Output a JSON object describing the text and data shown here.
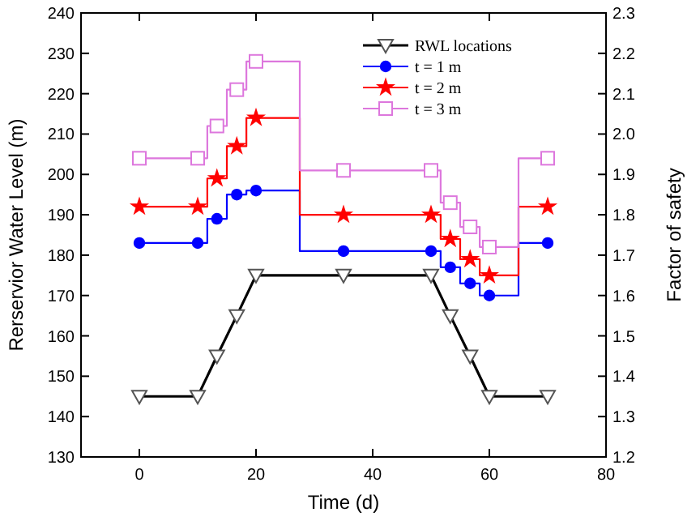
{
  "chart_data": {
    "type": "step",
    "xlabel": "Time (d)",
    "ylabel": "Rerservior Water Level (m)",
    "y2label": "Factor of safety",
    "xlim": [
      -10,
      80
    ],
    "xticks": [
      0,
      20,
      40,
      60,
      80
    ],
    "ylim": [
      130,
      240
    ],
    "yticks": [
      130,
      140,
      150,
      160,
      170,
      180,
      190,
      200,
      210,
      220,
      230,
      240
    ],
    "y2lim": [
      1.2,
      2.3
    ],
    "y2ticks": [
      1.2,
      1.3,
      1.4,
      1.5,
      1.6,
      1.7,
      1.8,
      1.9,
      {
        "value": 2.0,
        "label": "2.0"
      },
      2.1,
      2.2,
      2.3
    ],
    "legend": "top right",
    "grid": false,
    "x": [
      0,
      10,
      13.3,
      16.7,
      20,
      35,
      50,
      53.3,
      56.7,
      60,
      70
    ],
    "series": [
      {
        "name": "RWL locations",
        "type": "line",
        "color": "#000000",
        "marker": "triangle",
        "values": [
          145,
          145,
          155,
          165,
          175,
          175,
          175,
          165,
          155,
          145,
          145
        ]
      },
      {
        "name": "t = 1 m",
        "axis": "y2",
        "color": "#0000ff",
        "marker": "circle",
        "values": [
          1.73,
          1.73,
          1.79,
          1.85,
          1.86,
          1.71,
          1.71,
          1.67,
          1.63,
          1.6,
          1.73
        ]
      },
      {
        "name": "t = 2 m",
        "axis": "y2",
        "color": "#ff0000",
        "marker": "star",
        "values": [
          1.82,
          1.82,
          1.89,
          1.97,
          2.04,
          1.8,
          1.8,
          1.74,
          1.69,
          1.65,
          1.82
        ]
      },
      {
        "name": "t = 3 m",
        "axis": "y2",
        "color": "#dd77dd",
        "marker": "square",
        "values": [
          1.94,
          1.94,
          2.02,
          2.11,
          2.18,
          1.91,
          1.91,
          1.83,
          1.77,
          1.72,
          1.94
        ]
      }
    ]
  }
}
